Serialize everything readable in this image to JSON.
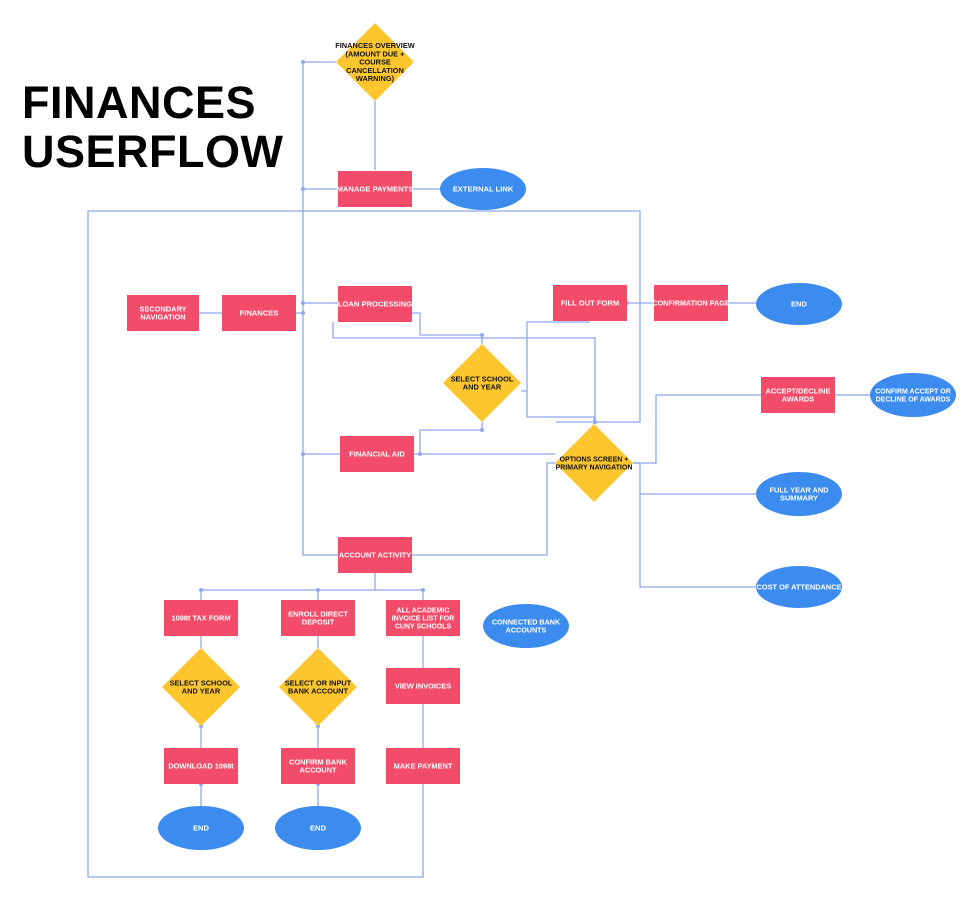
{
  "title": {
    "line1": "FINANCES",
    "line2": "USERFLOW"
  },
  "colors": {
    "process": "#f24c6a",
    "decision": "#fdc62f",
    "terminal": "#3c8cf0",
    "connector": "#8fa9ee"
  },
  "nodes": {
    "finances_overview": {
      "shape": "decision",
      "lines": [
        "FINANCES OVERVIEW",
        "(AMOUNT DUE +",
        "COURSE",
        "CANCELLATION",
        "WARNING)"
      ]
    },
    "manage_payments": {
      "shape": "process",
      "lines": [
        "MANAGE PAYMENTS"
      ]
    },
    "external_link": {
      "shape": "terminal",
      "lines": [
        "EXTERNAL LINK"
      ]
    },
    "secondary_navigation": {
      "shape": "process",
      "lines": [
        "SECONDARY",
        "NAVIGATION"
      ]
    },
    "finances": {
      "shape": "process",
      "lines": [
        "FINANCES"
      ]
    },
    "loan_processing": {
      "shape": "process",
      "lines": [
        "LOAN PROCESSING"
      ]
    },
    "fill_out_form": {
      "shape": "process",
      "lines": [
        "FILL OUT FORM"
      ]
    },
    "confirmation_page": {
      "shape": "process",
      "lines": [
        "CONFIRMATION PAGE"
      ]
    },
    "end_top": {
      "shape": "terminal",
      "lines": [
        "END"
      ]
    },
    "select_school_year_top": {
      "shape": "decision",
      "lines": [
        "SELECT SCHOOL",
        "AND YEAR"
      ]
    },
    "accept_decline_awards": {
      "shape": "process",
      "lines": [
        "ACCEPT/DECLINE",
        "AWARDS"
      ]
    },
    "confirm_accept_decline": {
      "shape": "terminal",
      "lines": [
        "CONFIRM ACCEPT OR",
        "DECLINE OF AWARDS"
      ]
    },
    "financial_aid": {
      "shape": "process",
      "lines": [
        "FINANCIAL AID"
      ]
    },
    "options_screen": {
      "shape": "decision",
      "lines": [
        "OPTIONS SCREEN +",
        "PRIMARY NAVIGATION"
      ]
    },
    "full_year_summary": {
      "shape": "terminal",
      "lines": [
        "FULL YEAR AND",
        "SUMMARY"
      ]
    },
    "account_activity": {
      "shape": "process",
      "lines": [
        "ACCOUNT ACTIVITY"
      ]
    },
    "cost_of_attendance": {
      "shape": "terminal",
      "lines": [
        "COST OF ATTENDANCE"
      ]
    },
    "tax_form_1098t": {
      "shape": "process",
      "lines": [
        "1098t TAX FORM"
      ]
    },
    "enroll_direct_deposit": {
      "shape": "process",
      "lines": [
        "ENROLL DIRECT",
        "DEPOSIT"
      ]
    },
    "all_academic_invoice": {
      "shape": "process",
      "lines": [
        "ALL ACADEMIC",
        "INVOICE LIST FOR",
        "CUNY SCHOOLS"
      ]
    },
    "connected_bank_accounts": {
      "shape": "terminal",
      "lines": [
        "CONNECTED BANK",
        "ACCOUNTS"
      ]
    },
    "select_school_year_bottom": {
      "shape": "decision",
      "lines": [
        "SELECT SCHOOL",
        "AND YEAR"
      ]
    },
    "select_input_bank": {
      "shape": "decision",
      "lines": [
        "SELECT OR INPUT",
        "BANK ACCOUNT"
      ]
    },
    "view_invoices": {
      "shape": "process",
      "lines": [
        "VIEW INVOICES"
      ]
    },
    "download_1098t": {
      "shape": "process",
      "lines": [
        "DOWNLOAD 1098t"
      ]
    },
    "confirm_bank_account": {
      "shape": "process",
      "lines": [
        "CONFIRM BANK",
        "ACCOUNT"
      ]
    },
    "make_payment": {
      "shape": "process",
      "lines": [
        "MAKE PAYMENT"
      ]
    },
    "end_left": {
      "shape": "terminal",
      "lines": [
        "END"
      ]
    },
    "end_middle": {
      "shape": "terminal",
      "lines": [
        "END"
      ]
    }
  }
}
